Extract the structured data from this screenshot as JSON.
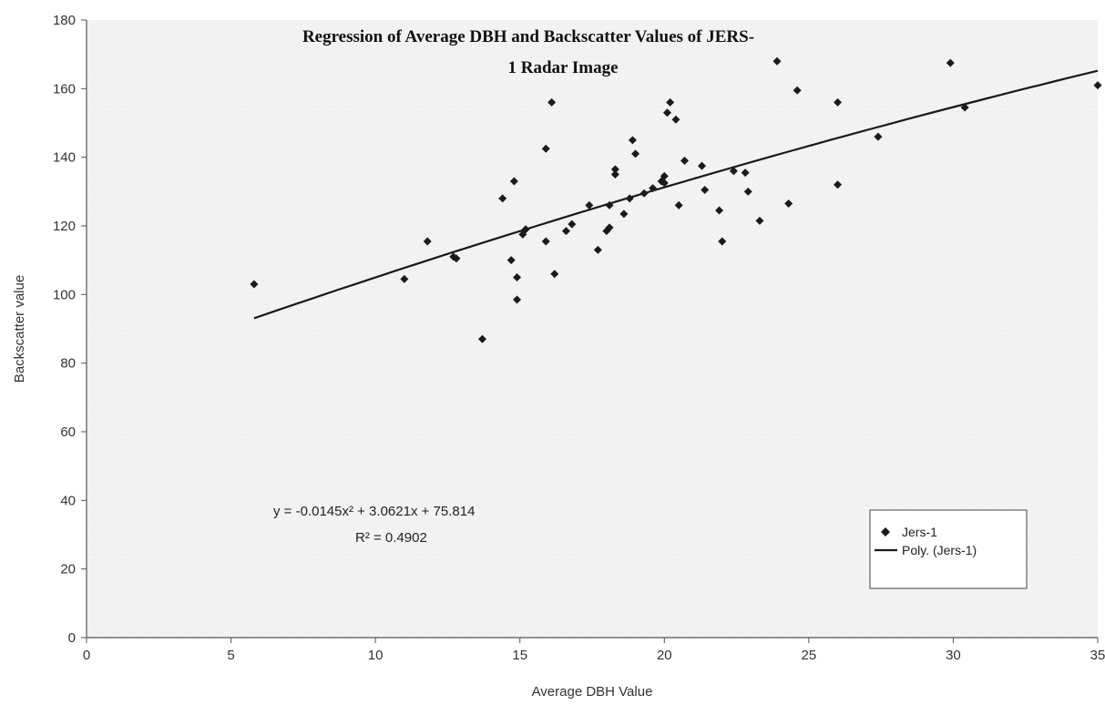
{
  "chart_data": {
    "type": "scatter",
    "title_lines": [
      "Regression of Average DBH and Backscatter Values of JERS-",
      "1 Radar Image"
    ],
    "xlabel": "Average DBH Value",
    "ylabel": "Backscatter value",
    "xlim": [
      0,
      35
    ],
    "ylim": [
      0,
      180
    ],
    "xticks": [
      0,
      5,
      10,
      15,
      20,
      25,
      30,
      35
    ],
    "yticks": [
      0,
      20,
      40,
      60,
      80,
      100,
      120,
      140,
      160,
      180
    ],
    "grid": false,
    "legend_position": "bottom-right",
    "series": [
      {
        "name": "Jers-1",
        "marker": "diamond",
        "color": "#1a1a1a",
        "points": [
          [
            5.8,
            103
          ],
          [
            11.0,
            104.5
          ],
          [
            11.8,
            115.5
          ],
          [
            12.7,
            111
          ],
          [
            12.8,
            110.5
          ],
          [
            13.7,
            87
          ],
          [
            14.4,
            128
          ],
          [
            14.7,
            110
          ],
          [
            14.8,
            133
          ],
          [
            14.9,
            105
          ],
          [
            14.9,
            98.5
          ],
          [
            15.1,
            117.5
          ],
          [
            15.2,
            119
          ],
          [
            15.9,
            115.5
          ],
          [
            15.9,
            142.5
          ],
          [
            16.1,
            156
          ],
          [
            16.2,
            106
          ],
          [
            16.6,
            118.5
          ],
          [
            16.8,
            120.5
          ],
          [
            17.4,
            126
          ],
          [
            17.7,
            113
          ],
          [
            18.0,
            118.5
          ],
          [
            18.1,
            119.5
          ],
          [
            18.1,
            126
          ],
          [
            18.3,
            136.5
          ],
          [
            18.3,
            135
          ],
          [
            18.6,
            123.5
          ],
          [
            18.8,
            128
          ],
          [
            18.9,
            145
          ],
          [
            19.0,
            141
          ],
          [
            19.3,
            129.5
          ],
          [
            19.6,
            131
          ],
          [
            19.9,
            133
          ],
          [
            20.0,
            134.5
          ],
          [
            20.0,
            132.5
          ],
          [
            20.1,
            153
          ],
          [
            20.2,
            156
          ],
          [
            20.4,
            151
          ],
          [
            20.5,
            126
          ],
          [
            20.7,
            139
          ],
          [
            21.3,
            137.5
          ],
          [
            21.4,
            130.5
          ],
          [
            21.9,
            124.5
          ],
          [
            22.0,
            115.5
          ],
          [
            22.4,
            136
          ],
          [
            22.8,
            135.5
          ],
          [
            22.9,
            130
          ],
          [
            23.3,
            121.5
          ],
          [
            23.9,
            168
          ],
          [
            24.3,
            126.5
          ],
          [
            24.6,
            159.5
          ],
          [
            26.0,
            156
          ],
          [
            26.0,
            132
          ],
          [
            27.4,
            146
          ],
          [
            29.9,
            167.5
          ],
          [
            30.4,
            154.5
          ],
          [
            35.0,
            161
          ]
        ]
      },
      {
        "name": "Poly. (Jers-1)",
        "type": "line",
        "color": "#1a1a1a",
        "coefficients": [
          -0.0145,
          3.0621,
          75.814
        ],
        "x_range": [
          5.8,
          35.0
        ]
      }
    ],
    "annotations": {
      "equation": "y = -0.0145x² + 3.0621x + 75.814",
      "r_squared": "R² = 0.4902"
    }
  }
}
